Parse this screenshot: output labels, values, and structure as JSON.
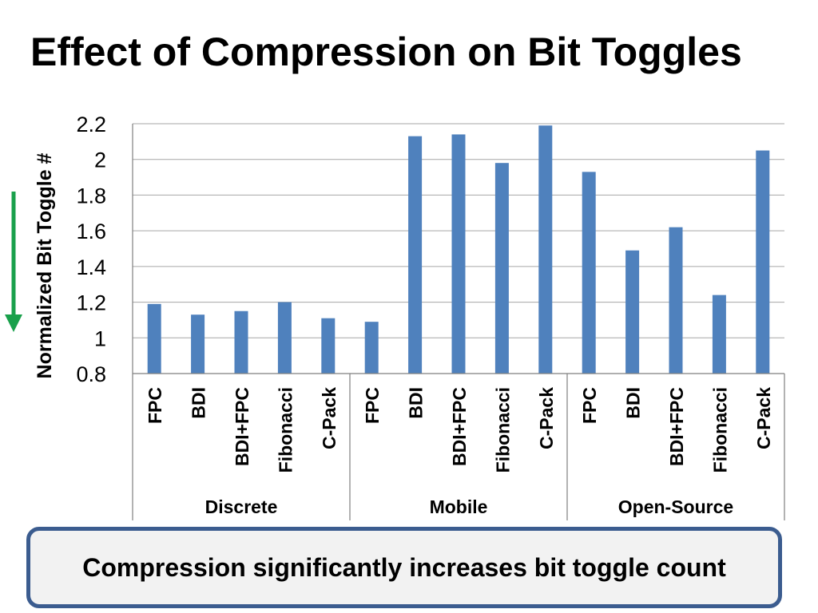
{
  "slide": {
    "title": "Effect of Compression on Bit Toggles",
    "callout": "Compression significantly increases bit toggle count"
  },
  "colors": {
    "bar": "#4f81bd",
    "arrow": "#19a04b",
    "callout_border": "#3b5c8f",
    "callout_fill": "#f2f2f2"
  },
  "indicator": {
    "icon": "down-arrow-icon",
    "meaning": "lower is better"
  },
  "chart_data": {
    "type": "bar",
    "title": "",
    "xlabel": "",
    "ylabel": "Normalized Bit Toggle #",
    "ylim": [
      0.8,
      2.2
    ],
    "yticks": [
      "0.8",
      "1",
      "1.2",
      "1.4",
      "1.6",
      "1.8",
      "2",
      "2.2"
    ],
    "grid": true,
    "legend": "none",
    "groups": [
      {
        "name": "Discrete",
        "categories": [
          "FPC",
          "BDI",
          "BDI+FPC",
          "Fibonacci",
          "C-Pack"
        ],
        "values": [
          1.19,
          1.13,
          1.15,
          1.2,
          1.11
        ]
      },
      {
        "name": "Mobile",
        "categories": [
          "FPC",
          "BDI",
          "BDI+FPC",
          "Fibonacci",
          "C-Pack"
        ],
        "values": [
          1.09,
          2.13,
          2.14,
          1.98,
          2.19
        ]
      },
      {
        "name": "Open-Source",
        "categories": [
          "FPC",
          "BDI",
          "BDI+FPC",
          "Fibonacci",
          "C-Pack"
        ],
        "values": [
          1.93,
          1.49,
          1.62,
          1.24,
          2.05
        ]
      }
    ]
  }
}
